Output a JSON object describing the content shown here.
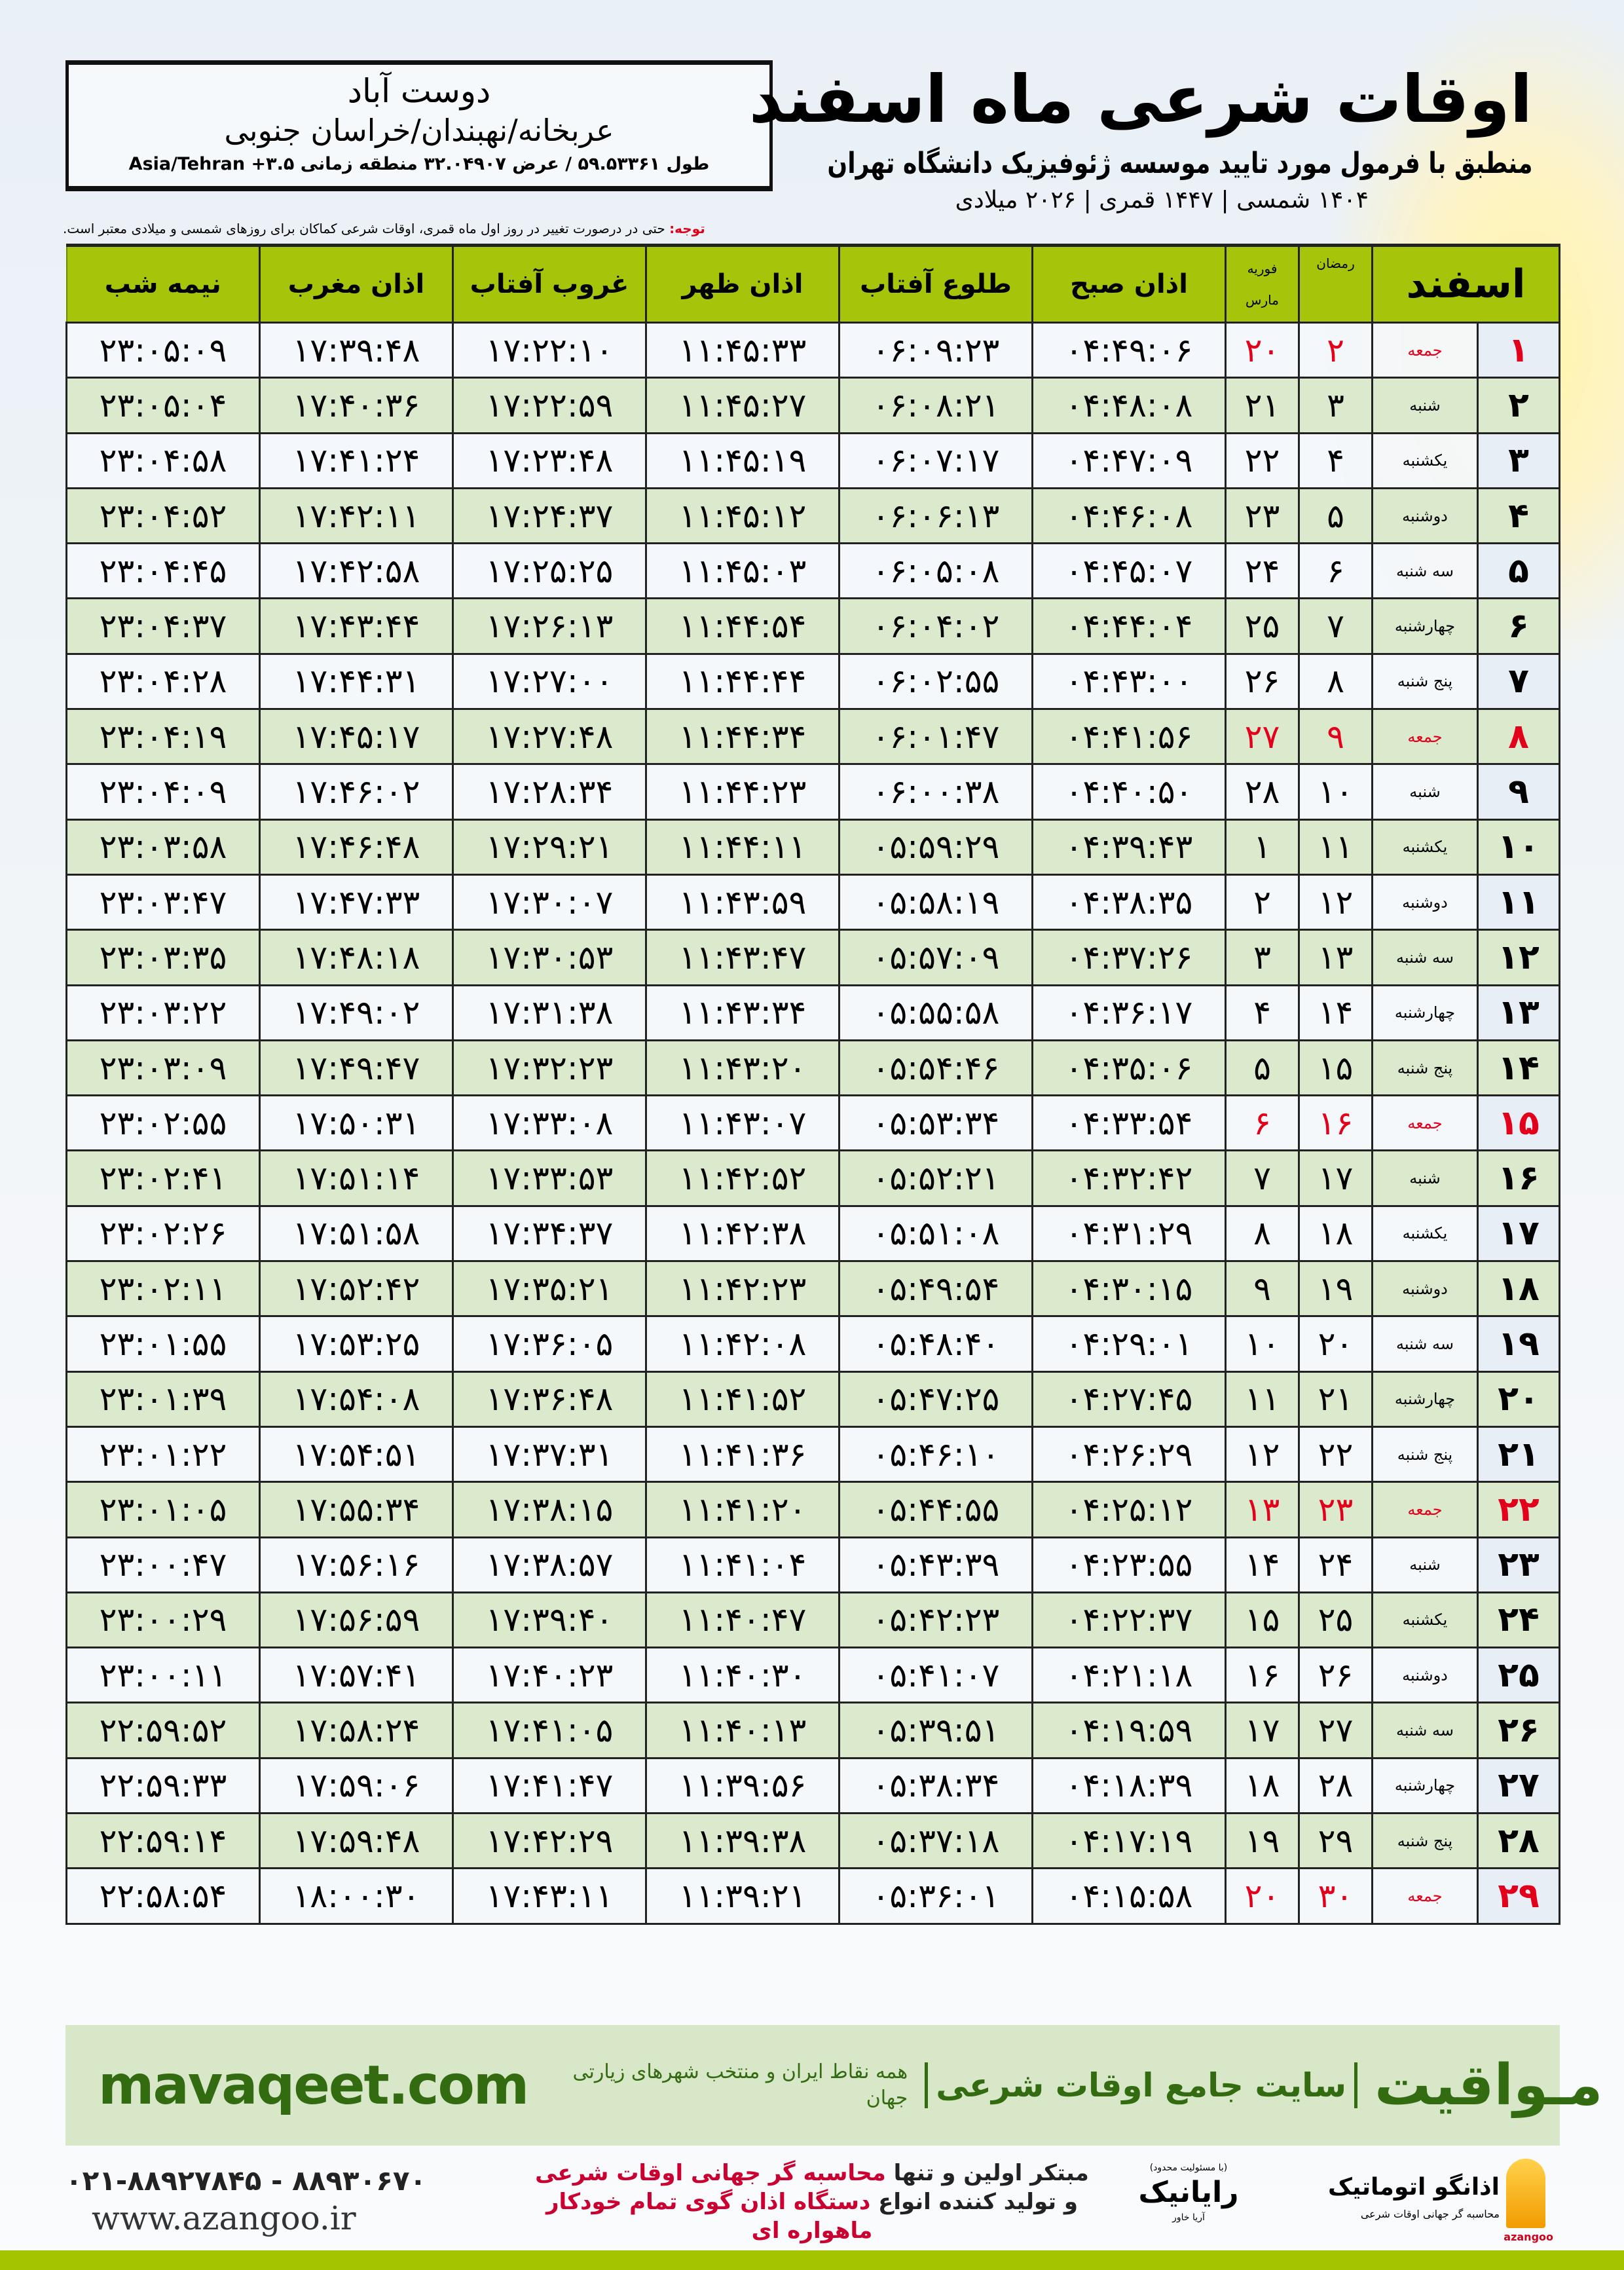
{
  "header": {
    "title": "اوقات شرعی ماه اسفند",
    "subtitle": "منطبق با فرمول مورد تایید موسسه ژئوفیزیک دانشگاه تهران",
    "years": "۱۴۰۴ شمسی | ۱۴۴۷ قمری | ۲۰۲۶ میلادی"
  },
  "location": {
    "name": "دوست آباد",
    "path": "عربخانه/نهبندان/خراسان جنوبی",
    "coords": "طول ۵۹.۵۳۳۶۱ / عرض ۳۲.۰۴۹۰۷ منطقه زمانی ۳.۵+ Asia/Tehran"
  },
  "note": {
    "label": "توجه:",
    "text": " حتی در درصورت تغییر در روز اول ماه قمری، اوقات شرعی کماکان برای روزهای شمسی و میلادی معتبر است."
  },
  "table": {
    "headers": {
      "midnight": "نیمه شب",
      "maghrib": "اذان مغرب",
      "sunset": "غروب آفتاب",
      "dhuhr": "اذان ظهر",
      "sunrise": "طلوع آفتاب",
      "fajr": "اذان صبح",
      "gregorian_top": "فوریه",
      "gregorian_bottom": "مارس",
      "hijri": "رمضان",
      "month": "اسفند"
    },
    "highlight_color": "#e3001b",
    "header_color": "#a5c40a",
    "rows": [
      {
        "day": "۱",
        "weekday": "جمعه",
        "hijri": "۲",
        "greg": "۲۰",
        "fajr": "۰۴:۴۹:۰۶",
        "sunrise": "۰۶:۰۹:۲۳",
        "dhuhr": "۱۱:۴۵:۳۳",
        "sunset": "۱۷:۲۲:۱۰",
        "maghrib": "۱۷:۳۹:۴۸",
        "midnight": "۲۳:۰۵:۰۹",
        "holiday": true
      },
      {
        "day": "۲",
        "weekday": "شنبه",
        "hijri": "۳",
        "greg": "۲۱",
        "fajr": "۰۴:۴۸:۰۸",
        "sunrise": "۰۶:۰۸:۲۱",
        "dhuhr": "۱۱:۴۵:۲۷",
        "sunset": "۱۷:۲۲:۵۹",
        "maghrib": "۱۷:۴۰:۳۶",
        "midnight": "۲۳:۰۵:۰۴"
      },
      {
        "day": "۳",
        "weekday": "یکشنبه",
        "hijri": "۴",
        "greg": "۲۲",
        "fajr": "۰۴:۴۷:۰۹",
        "sunrise": "۰۶:۰۷:۱۷",
        "dhuhr": "۱۱:۴۵:۱۹",
        "sunset": "۱۷:۲۳:۴۸",
        "maghrib": "۱۷:۴۱:۲۴",
        "midnight": "۲۳:۰۴:۵۸"
      },
      {
        "day": "۴",
        "weekday": "دوشنبه",
        "hijri": "۵",
        "greg": "۲۳",
        "fajr": "۰۴:۴۶:۰۸",
        "sunrise": "۰۶:۰۶:۱۳",
        "dhuhr": "۱۱:۴۵:۱۲",
        "sunset": "۱۷:۲۴:۳۷",
        "maghrib": "۱۷:۴۲:۱۱",
        "midnight": "۲۳:۰۴:۵۲"
      },
      {
        "day": "۵",
        "weekday": "سه شنبه",
        "hijri": "۶",
        "greg": "۲۴",
        "fajr": "۰۴:۴۵:۰۷",
        "sunrise": "۰۶:۰۵:۰۸",
        "dhuhr": "۱۱:۴۵:۰۳",
        "sunset": "۱۷:۲۵:۲۵",
        "maghrib": "۱۷:۴۲:۵۸",
        "midnight": "۲۳:۰۴:۴۵"
      },
      {
        "day": "۶",
        "weekday": "چهارشنبه",
        "hijri": "۷",
        "greg": "۲۵",
        "fajr": "۰۴:۴۴:۰۴",
        "sunrise": "۰۶:۰۴:۰۲",
        "dhuhr": "۱۱:۴۴:۵۴",
        "sunset": "۱۷:۲۶:۱۳",
        "maghrib": "۱۷:۴۳:۴۴",
        "midnight": "۲۳:۰۴:۳۷"
      },
      {
        "day": "۷",
        "weekday": "پنج شنبه",
        "hijri": "۸",
        "greg": "۲۶",
        "fajr": "۰۴:۴۳:۰۰",
        "sunrise": "۰۶:۰۲:۵۵",
        "dhuhr": "۱۱:۴۴:۴۴",
        "sunset": "۱۷:۲۷:۰۰",
        "maghrib": "۱۷:۴۴:۳۱",
        "midnight": "۲۳:۰۴:۲۸"
      },
      {
        "day": "۸",
        "weekday": "جمعه",
        "hijri": "۹",
        "greg": "۲۷",
        "fajr": "۰۴:۴۱:۵۶",
        "sunrise": "۰۶:۰۱:۴۷",
        "dhuhr": "۱۱:۴۴:۳۴",
        "sunset": "۱۷:۲۷:۴۸",
        "maghrib": "۱۷:۴۵:۱۷",
        "midnight": "۲۳:۰۴:۱۹",
        "holiday": true
      },
      {
        "day": "۹",
        "weekday": "شنبه",
        "hijri": "۱۰",
        "greg": "۲۸",
        "fajr": "۰۴:۴۰:۵۰",
        "sunrise": "۰۶:۰۰:۳۸",
        "dhuhr": "۱۱:۴۴:۲۳",
        "sunset": "۱۷:۲۸:۳۴",
        "maghrib": "۱۷:۴۶:۰۲",
        "midnight": "۲۳:۰۴:۰۹"
      },
      {
        "day": "۱۰",
        "weekday": "یکشنبه",
        "hijri": "۱۱",
        "greg": "۱",
        "fajr": "۰۴:۳۹:۴۳",
        "sunrise": "۰۵:۵۹:۲۹",
        "dhuhr": "۱۱:۴۴:۱۱",
        "sunset": "۱۷:۲۹:۲۱",
        "maghrib": "۱۷:۴۶:۴۸",
        "midnight": "۲۳:۰۳:۵۸"
      },
      {
        "day": "۱۱",
        "weekday": "دوشنبه",
        "hijri": "۱۲",
        "greg": "۲",
        "fajr": "۰۴:۳۸:۳۵",
        "sunrise": "۰۵:۵۸:۱۹",
        "dhuhr": "۱۱:۴۳:۵۹",
        "sunset": "۱۷:۳۰:۰۷",
        "maghrib": "۱۷:۴۷:۳۳",
        "midnight": "۲۳:۰۳:۴۷"
      },
      {
        "day": "۱۲",
        "weekday": "سه شنبه",
        "hijri": "۱۳",
        "greg": "۳",
        "fajr": "۰۴:۳۷:۲۶",
        "sunrise": "۰۵:۵۷:۰۹",
        "dhuhr": "۱۱:۴۳:۴۷",
        "sunset": "۱۷:۳۰:۵۳",
        "maghrib": "۱۷:۴۸:۱۸",
        "midnight": "۲۳:۰۳:۳۵"
      },
      {
        "day": "۱۳",
        "weekday": "چهارشنبه",
        "hijri": "۱۴",
        "greg": "۴",
        "fajr": "۰۴:۳۶:۱۷",
        "sunrise": "۰۵:۵۵:۵۸",
        "dhuhr": "۱۱:۴۳:۳۴",
        "sunset": "۱۷:۳۱:۳۸",
        "maghrib": "۱۷:۴۹:۰۲",
        "midnight": "۲۳:۰۳:۲۲"
      },
      {
        "day": "۱۴",
        "weekday": "پنج شنبه",
        "hijri": "۱۵",
        "greg": "۵",
        "fajr": "۰۴:۳۵:۰۶",
        "sunrise": "۰۵:۵۴:۴۶",
        "dhuhr": "۱۱:۴۳:۲۰",
        "sunset": "۱۷:۳۲:۲۳",
        "maghrib": "۱۷:۴۹:۴۷",
        "midnight": "۲۳:۰۳:۰۹"
      },
      {
        "day": "۱۵",
        "weekday": "جمعه",
        "hijri": "۱۶",
        "greg": "۶",
        "fajr": "۰۴:۳۳:۵۴",
        "sunrise": "۰۵:۵۳:۳۴",
        "dhuhr": "۱۱:۴۳:۰۷",
        "sunset": "۱۷:۳۳:۰۸",
        "maghrib": "۱۷:۵۰:۳۱",
        "midnight": "۲۳:۰۲:۵۵",
        "holiday": true
      },
      {
        "day": "۱۶",
        "weekday": "شنبه",
        "hijri": "۱۷",
        "greg": "۷",
        "fajr": "۰۴:۳۲:۴۲",
        "sunrise": "۰۵:۵۲:۲۱",
        "dhuhr": "۱۱:۴۲:۵۲",
        "sunset": "۱۷:۳۳:۵۳",
        "maghrib": "۱۷:۵۱:۱۴",
        "midnight": "۲۳:۰۲:۴۱"
      },
      {
        "day": "۱۷",
        "weekday": "یکشنبه",
        "hijri": "۱۸",
        "greg": "۸",
        "fajr": "۰۴:۳۱:۲۹",
        "sunrise": "۰۵:۵۱:۰۸",
        "dhuhr": "۱۱:۴۲:۳۸",
        "sunset": "۱۷:۳۴:۳۷",
        "maghrib": "۱۷:۵۱:۵۸",
        "midnight": "۲۳:۰۲:۲۶"
      },
      {
        "day": "۱۸",
        "weekday": "دوشنبه",
        "hijri": "۱۹",
        "greg": "۹",
        "fajr": "۰۴:۳۰:۱۵",
        "sunrise": "۰۵:۴۹:۵۴",
        "dhuhr": "۱۱:۴۲:۲۳",
        "sunset": "۱۷:۳۵:۲۱",
        "maghrib": "۱۷:۵۲:۴۲",
        "midnight": "۲۳:۰۲:۱۱"
      },
      {
        "day": "۱۹",
        "weekday": "سه شنبه",
        "hijri": "۲۰",
        "greg": "۱۰",
        "fajr": "۰۴:۲۹:۰۱",
        "sunrise": "۰۵:۴۸:۴۰",
        "dhuhr": "۱۱:۴۲:۰۸",
        "sunset": "۱۷:۳۶:۰۵",
        "maghrib": "۱۷:۵۳:۲۵",
        "midnight": "۲۳:۰۱:۵۵"
      },
      {
        "day": "۲۰",
        "weekday": "چهارشنبه",
        "hijri": "۲۱",
        "greg": "۱۱",
        "fajr": "۰۴:۲۷:۴۵",
        "sunrise": "۰۵:۴۷:۲۵",
        "dhuhr": "۱۱:۴۱:۵۲",
        "sunset": "۱۷:۳۶:۴۸",
        "maghrib": "۱۷:۵۴:۰۸",
        "midnight": "۲۳:۰۱:۳۹"
      },
      {
        "day": "۲۱",
        "weekday": "پنج شنبه",
        "hijri": "۲۲",
        "greg": "۱۲",
        "fajr": "۰۴:۲۶:۲۹",
        "sunrise": "۰۵:۴۶:۱۰",
        "dhuhr": "۱۱:۴۱:۳۶",
        "sunset": "۱۷:۳۷:۳۱",
        "maghrib": "۱۷:۵۴:۵۱",
        "midnight": "۲۳:۰۱:۲۲"
      },
      {
        "day": "۲۲",
        "weekday": "جمعه",
        "hijri": "۲۳",
        "greg": "۱۳",
        "fajr": "۰۴:۲۵:۱۲",
        "sunrise": "۰۵:۴۴:۵۵",
        "dhuhr": "۱۱:۴۱:۲۰",
        "sunset": "۱۷:۳۸:۱۵",
        "maghrib": "۱۷:۵۵:۳۴",
        "midnight": "۲۳:۰۱:۰۵",
        "holiday": true
      },
      {
        "day": "۲۳",
        "weekday": "شنبه",
        "hijri": "۲۴",
        "greg": "۱۴",
        "fajr": "۰۴:۲۳:۵۵",
        "sunrise": "۰۵:۴۳:۳۹",
        "dhuhr": "۱۱:۴۱:۰۴",
        "sunset": "۱۷:۳۸:۵۷",
        "maghrib": "۱۷:۵۶:۱۶",
        "midnight": "۲۳:۰۰:۴۷"
      },
      {
        "day": "۲۴",
        "weekday": "یکشنبه",
        "hijri": "۲۵",
        "greg": "۱۵",
        "fajr": "۰۴:۲۲:۳۷",
        "sunrise": "۰۵:۴۲:۲۳",
        "dhuhr": "۱۱:۴۰:۴۷",
        "sunset": "۱۷:۳۹:۴۰",
        "maghrib": "۱۷:۵۶:۵۹",
        "midnight": "۲۳:۰۰:۲۹"
      },
      {
        "day": "۲۵",
        "weekday": "دوشنبه",
        "hijri": "۲۶",
        "greg": "۱۶",
        "fajr": "۰۴:۲۱:۱۸",
        "sunrise": "۰۵:۴۱:۰۷",
        "dhuhr": "۱۱:۴۰:۳۰",
        "sunset": "۱۷:۴۰:۲۳",
        "maghrib": "۱۷:۵۷:۴۱",
        "midnight": "۲۳:۰۰:۱۱"
      },
      {
        "day": "۲۶",
        "weekday": "سه شنبه",
        "hijri": "۲۷",
        "greg": "۱۷",
        "fajr": "۰۴:۱۹:۵۹",
        "sunrise": "۰۵:۳۹:۵۱",
        "dhuhr": "۱۱:۴۰:۱۳",
        "sunset": "۱۷:۴۱:۰۵",
        "maghrib": "۱۷:۵۸:۲۴",
        "midnight": "۲۲:۵۹:۵۲"
      },
      {
        "day": "۲۷",
        "weekday": "چهارشنبه",
        "hijri": "۲۸",
        "greg": "۱۸",
        "fajr": "۰۴:۱۸:۳۹",
        "sunrise": "۰۵:۳۸:۳۴",
        "dhuhr": "۱۱:۳۹:۵۶",
        "sunset": "۱۷:۴۱:۴۷",
        "maghrib": "۱۷:۵۹:۰۶",
        "midnight": "۲۲:۵۹:۳۳"
      },
      {
        "day": "۲۸",
        "weekday": "پنج شنبه",
        "hijri": "۲۹",
        "greg": "۱۹",
        "fajr": "۰۴:۱۷:۱۹",
        "sunrise": "۰۵:۳۷:۱۸",
        "dhuhr": "۱۱:۳۹:۳۸",
        "sunset": "۱۷:۴۲:۲۹",
        "maghrib": "۱۷:۵۹:۴۸",
        "midnight": "۲۲:۵۹:۱۴"
      },
      {
        "day": "۲۹",
        "weekday": "جمعه",
        "hijri": "۳۰",
        "greg": "۲۰",
        "fajr": "۰۴:۱۵:۵۸",
        "sunrise": "۰۵:۳۶:۰۱",
        "dhuhr": "۱۱:۳۹:۲۱",
        "sunset": "۱۷:۴۳:۱۱",
        "maghrib": "۱۸:۰۰:۳۰",
        "midnight": "۲۲:۵۸:۵۴",
        "holiday": true
      }
    ]
  },
  "banner": {
    "brand": "مـواقیت",
    "tagline": "سایت جامع اوقات شرعی",
    "sub": "همه نقاط ایران و منتخب شهرهای زیارتی جهان",
    "site": "mavaqeet.com",
    "color": "#336b10"
  },
  "footer": {
    "phone": "۰۲۱-۸۸۹۲۷۸۴۵ - ۸۸۹۳۰۶۷۰",
    "web": "www.azangoo.ir",
    "promo1_a": "مبتکر اولین و تنها ",
    "promo1_b": "محاسبه گر جهانی اوقات شرعی",
    "promo2_a": "و تولید کننده انواع ",
    "promo2_b": "دستگاه اذان گوی تمام خودکار ماهواره ای",
    "rayanik": "رایانیک",
    "rayanik_sub": "آریا خاور",
    "rayanik_note": "(با مسئولیت محدود)",
    "azangoo": "اذانگو اتوماتیک",
    "azangoo_sub": "محاسبه گر جهانی اوقات شرعی",
    "azangoo_en": "azangoo"
  }
}
